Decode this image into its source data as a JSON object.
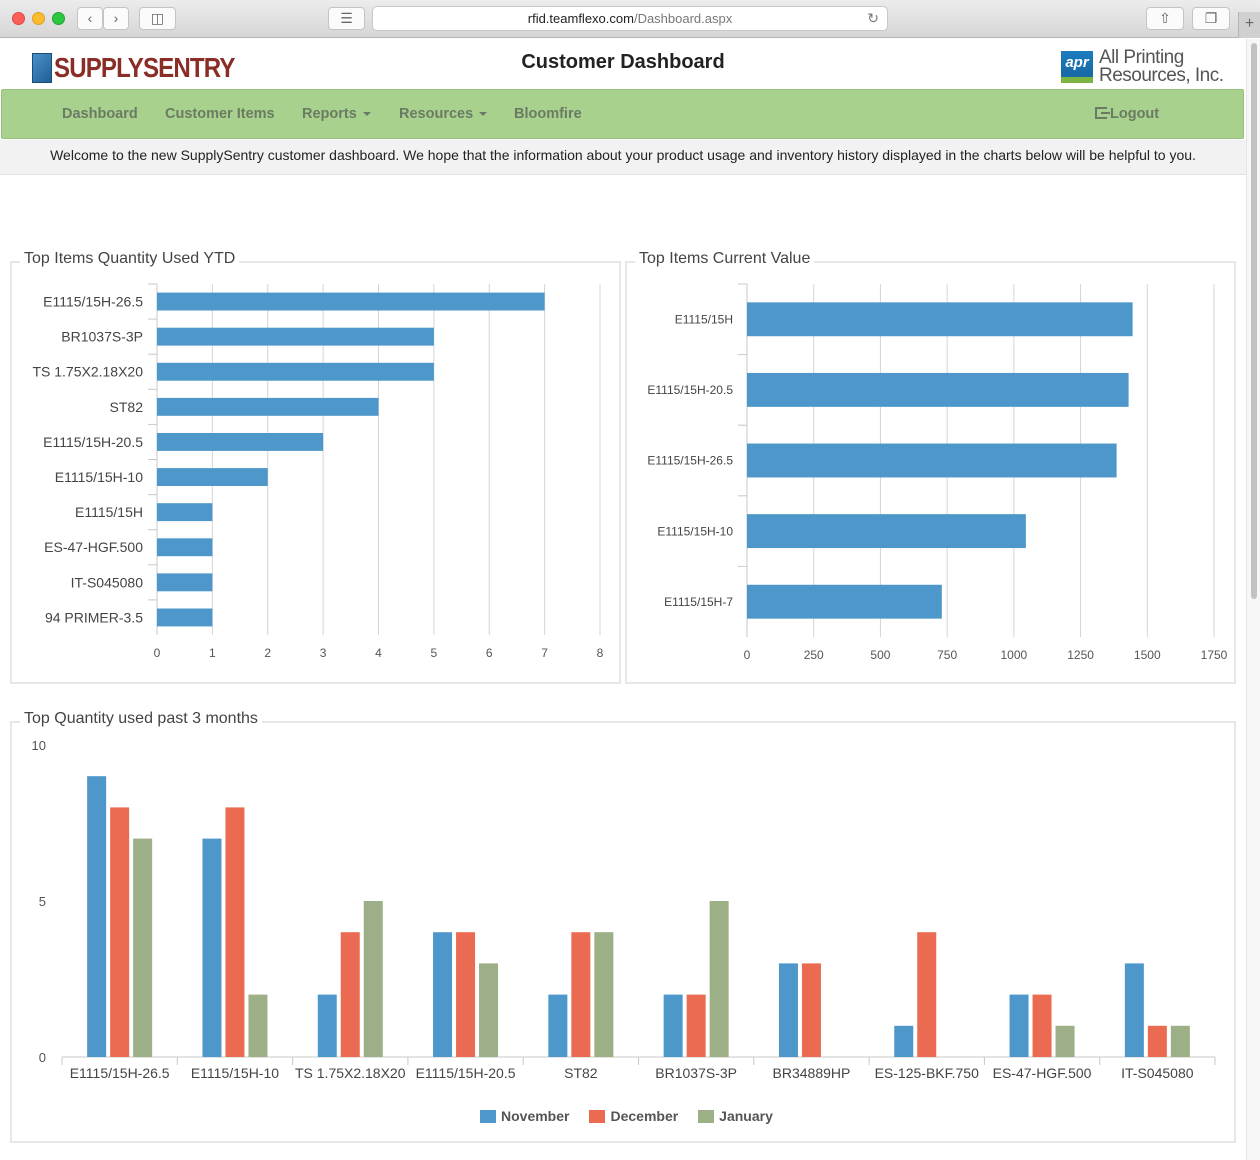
{
  "browser": {
    "url_domain": "rfid.teamflexo.com",
    "url_path": "/Dashboard.aspx"
  },
  "header": {
    "brand_left": "SUPPLYSENTRY",
    "title": "Customer Dashboard",
    "brand_right_badge": "apr",
    "brand_right_line1": "All Printing",
    "brand_right_line2": "Resources, Inc."
  },
  "nav": {
    "items": [
      "Dashboard",
      "Customer Items",
      "Reports",
      "Resources",
      "Bloomfire"
    ],
    "logout": "Logout"
  },
  "welcome": "Welcome to the new SupplySentry customer dashboard. We hope that the information about your product usage and inventory history displayed in the charts below will be helpful to you.",
  "colors": {
    "nav_bg": "#a9d18e",
    "bar_blue": "#4d97ca",
    "bar_red": "#ea6b51",
    "bar_green": "#9caf86"
  },
  "chart_data": [
    {
      "type": "bar",
      "orientation": "horizontal",
      "title": "Top Items Quantity Used YTD",
      "categories": [
        "E1115/15H-26.5",
        "BR1037S-3P",
        "TS 1.75X2.18X20",
        "ST82",
        "E1115/15H-20.5",
        "E1115/15H-10",
        "E1115/15H",
        "ES-47-HGF.500",
        "IT-S045080",
        "94 PRIMER-3.5"
      ],
      "values": [
        7,
        5,
        5,
        4,
        3,
        2,
        1,
        1,
        1,
        1
      ],
      "xlim": [
        0,
        8
      ],
      "ticks": [
        "0",
        "1",
        "2",
        "3",
        "4",
        "5",
        "6",
        "7",
        "8"
      ],
      "grid": true
    },
    {
      "type": "bar",
      "orientation": "horizontal",
      "title": "Top Items Current Value",
      "categories": [
        "E1115/15H",
        "E1115/15H-20.5",
        "E1115/15H-26.5",
        "E1115/15H-10",
        "E1115/15H-7"
      ],
      "values": [
        1445,
        1430,
        1385,
        1045,
        730
      ],
      "xlim": [
        0,
        1750
      ],
      "ticks": [
        "0",
        "250",
        "500",
        "750",
        "1000",
        "1250",
        "1500",
        "1750"
      ],
      "grid": true
    },
    {
      "type": "bar",
      "orientation": "vertical",
      "title": "Top Quantity used past 3 months",
      "categories": [
        "E1115/15H-26.5",
        "E1115/15H-10",
        "TS 1.75X2.18X20",
        "E1115/15H-20.5",
        "ST82",
        "BR1037S-3P",
        "BR34889HP",
        "ES-125-BKF.750",
        "ES-47-HGF.500",
        "IT-S045080"
      ],
      "series": [
        {
          "name": "November",
          "values": [
            9,
            7,
            2,
            4,
            2,
            2,
            3,
            1,
            2,
            3
          ]
        },
        {
          "name": "December",
          "values": [
            8,
            8,
            4,
            4,
            4,
            2,
            3,
            4,
            2,
            1
          ]
        },
        {
          "name": "January",
          "values": [
            7,
            2,
            5,
            3,
            4,
            5,
            0,
            0,
            1,
            1
          ]
        }
      ],
      "ylim": [
        0,
        10
      ],
      "ticks": [
        "0",
        "5",
        "10"
      ],
      "grid": false,
      "legend": "bottom-center"
    }
  ]
}
